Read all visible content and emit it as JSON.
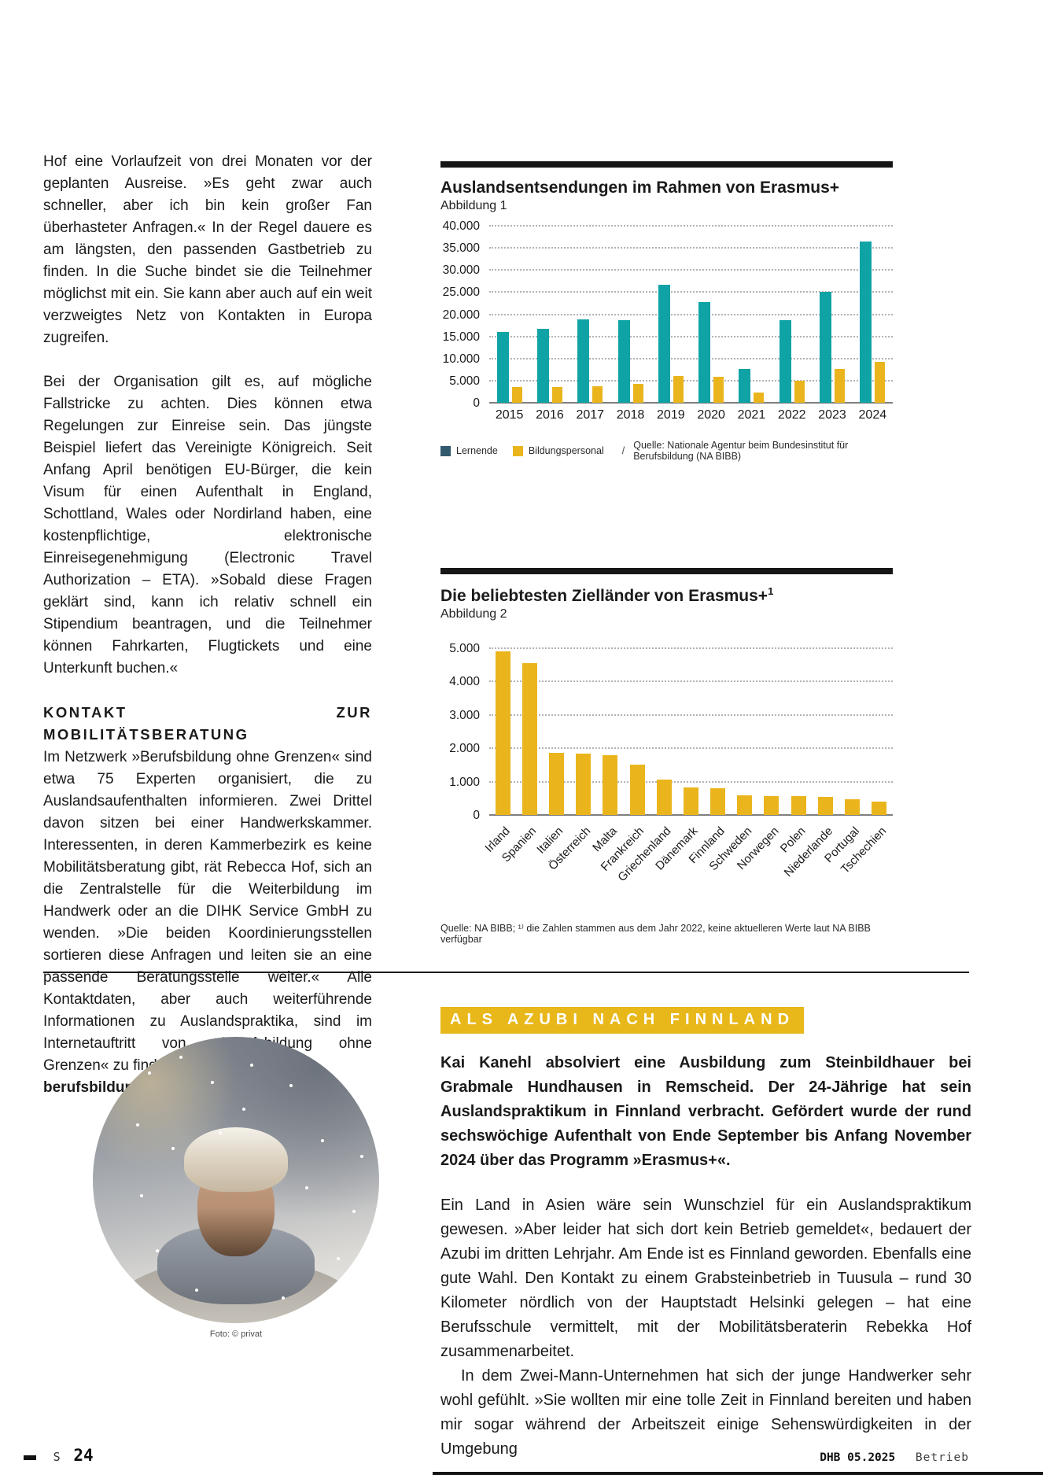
{
  "colors": {
    "teal": "#0FA3A6",
    "yellow": "#EAB51C",
    "legend_dark": "#33596E",
    "kicker_bg": "#E8B719"
  },
  "article": {
    "para1": "Hof eine Vorlaufzeit von drei Monaten vor der geplanten Ausreise. »Es geht zwar auch schneller, aber ich bin kein großer Fan überhasteter Anfragen.« In der Regel dauere es am längsten, den passenden Gastbetrieb zu finden. In die Suche bindet sie die Teilnehmer möglichst mit ein. Sie kann aber auch auf ein weit verzweigtes Netz von Kontakten in Europa zugreifen.",
    "para2": "Bei der Organisation gilt es, auf mögliche Fallstricke zu achten. Dies können etwa Regelungen zur Einreise sein. Das jüngste Beispiel liefert das Vereinigte Königreich. Seit Anfang April benötigen EU-Bürger, die kein Visum für einen Aufenthalt in England, Schottland, Wales oder Nordirland haben, eine kostenpflichtige, elektronische Einreisegenehmigung (Electronic Travel Authorization – ETA). »Sobald diese Fragen geklärt sind, kann ich relativ schnell ein Stipendium beantragen, und die Teilnehmer können Fahrkarten, Flugtickets und eine Unterkunft buchen.«",
    "heading": "KONTAKT ZUR MOBILITÄTSBERATUNG",
    "para3": "Im Netzwerk »Berufsbildung ohne Grenzen« sind etwa 75 Experten organisiert, die zu Auslandsaufenthalten informieren. Zwei Drittel davon sitzen bei einer Handwerkskammer. Interessenten, in deren Kammerbezirk es keine Mobilitätsberatung gibt, rät Rebecca Hof, sich an die Zentralstelle für die Weiterbildung im Handwerk oder an die DIHK Service GmbH zu wenden. »Die beiden Koordinierungsstellen sortieren diese Anfragen und leiten sie an eine passende Beratungsstelle weiter.« Alle Kontaktdaten, aber auch weiterführende Informationen zu Auslandspraktika, sind im Internetauftritt von »Berufsbildung ohne Grenzen« zu finden.",
    "link": "berufsbildung-ohne-grenzen.de"
  },
  "chart_data": [
    {
      "type": "bar",
      "title": "Auslandsentsendungen im Rahmen von Erasmus+",
      "subtitle": "Abbildung 1",
      "categories": [
        "2015",
        "2016",
        "2017",
        "2018",
        "2019",
        "2020",
        "2021",
        "2022",
        "2023",
        "2024"
      ],
      "series": [
        {
          "name": "Lernende",
          "color": "#0FA3A6",
          "legend_color": "#33596E",
          "values": [
            16000,
            16800,
            18800,
            18600,
            26700,
            22800,
            7700,
            18600,
            25100,
            36500
          ]
        },
        {
          "name": "Bildungspersonal",
          "color": "#EAB51C",
          "legend_color": "#EAB51C",
          "values": [
            3500,
            3500,
            3800,
            4200,
            6000,
            5800,
            2400,
            5000,
            7700,
            9300
          ]
        }
      ],
      "ylim": [
        0,
        40000
      ],
      "yticks": [
        "40.000",
        "35.000",
        "30.000",
        "25.000",
        "20.000",
        "15.000",
        "10.000",
        "5.000",
        "0"
      ],
      "grid": true,
      "legend_position": "bottom",
      "legend_separator": "/",
      "source": "Quelle: Nationale Agentur beim Bundesinstitut für Berufsbildung (NA BIBB)"
    },
    {
      "type": "bar",
      "title": "Die beliebtesten Zielländer von Erasmus+",
      "title_sup": "1",
      "subtitle": "Abbildung 2",
      "categories": [
        "Irland",
        "Spanien",
        "Italien",
        "Österreich",
        "Malta",
        "Frankreich",
        "Griechenland",
        "Dänemark",
        "Finnland",
        "Schweden",
        "Norwegen",
        "Polen",
        "Niederlande",
        "Portugal",
        "Tschechien"
      ],
      "values": [
        4900,
        4550,
        1870,
        1830,
        1790,
        1520,
        1060,
        820,
        800,
        600,
        570,
        570,
        540,
        480,
        400
      ],
      "bar_color": "#EAB51C",
      "ylim": [
        0,
        5000
      ],
      "yticks": [
        "5.000",
        "4.000",
        "3.000",
        "2.000",
        "1.000",
        "0"
      ],
      "grid": true,
      "source": "Quelle: NA BIBB; ¹⁾ die Zahlen stammen aus dem Jahr 2022, keine aktuelleren Werte laut NA BIBB verfügbar"
    }
  ],
  "finnland": {
    "kicker": "ALS AZUBI NACH FINNLAND",
    "lead": "Kai Kanehl absolviert eine Ausbildung zum Steinbildhauer bei Grabmale Hundhausen in Remscheid. Der 24-Jährige hat sein Auslandspraktikum in Finnland verbracht. Gefördert wurde der rund sechswöchige Aufenthalt von Ende September bis Anfang November 2024 über das Programm »Erasmus+«.",
    "body1": "Ein Land in Asien wäre sein Wunschziel für ein Auslandspraktikum gewesen. »Aber leider hat sich dort kein Betrieb gemeldet«, bedauert der Azubi im dritten Lehrjahr. Am Ende ist es Finnland geworden. Ebenfalls eine gute Wahl. Den Kontakt zu einem Grabsteinbetrieb in Tuusula – rund 30 Kilometer nördlich von der Hauptstadt Helsinki gelegen – hat eine Berufsschule vermittelt, mit der Mobilitätsberaterin Rebekka Hof zusammenarbeitet.",
    "body2": "In dem Zwei-Mann-Unternehmen hat sich der junge Handwerker sehr wohl gefühlt. »Sie wollten mir eine tolle Zeit in Finnland bereiten und haben mir sogar während der Arbeitszeit einige Sehenswürdigkeiten in der Umgebung"
  },
  "photo": {
    "caption": "Foto: © privat"
  },
  "footer": {
    "page_prefix": "S",
    "page_number": "24",
    "issue": "DHB 05.2025",
    "section": "Betrieb"
  }
}
